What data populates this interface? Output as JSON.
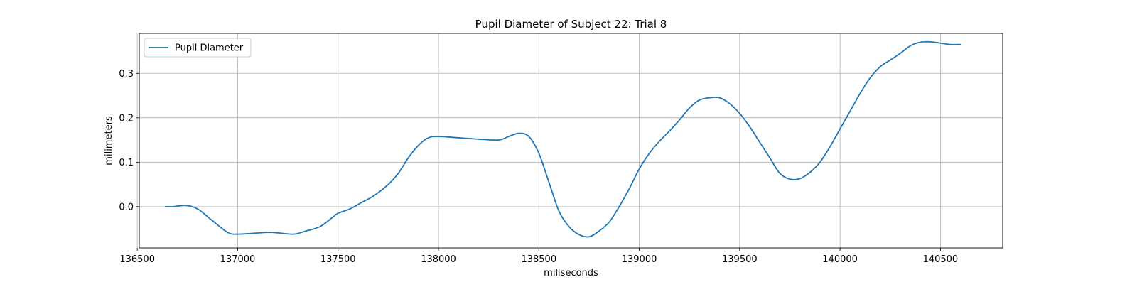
{
  "chart_data": {
    "type": "line",
    "title": "Pupil Diameter of Subject 22: Trial 8",
    "xlabel": "miliseconds",
    "ylabel": "milimeters",
    "xlim": [
      136510,
      140810
    ],
    "ylim": [
      -0.093,
      0.39
    ],
    "xticks": [
      136500,
      137000,
      137500,
      138000,
      138500,
      139000,
      139500,
      140000,
      140500
    ],
    "yticks": [
      0.0,
      0.1,
      0.2,
      0.3
    ],
    "ytick_labels": [
      "0.0",
      "0.1",
      "0.2",
      "0.3"
    ],
    "grid": true,
    "legend_position": "top-left",
    "series": [
      {
        "name": "Pupil Diameter",
        "color": "#1f77b4",
        "x": [
          136640,
          136680,
          136740,
          136800,
          136870,
          136950,
          137000,
          137080,
          137160,
          137220,
          137280,
          137340,
          137410,
          137470,
          137500,
          137560,
          137620,
          137680,
          137750,
          137800,
          137850,
          137900,
          137950,
          138000,
          138100,
          138200,
          138300,
          138350,
          138400,
          138450,
          138500,
          138550,
          138600,
          138650,
          138700,
          138750,
          138800,
          138850,
          138900,
          138950,
          139000,
          139050,
          139100,
          139150,
          139200,
          139250,
          139300,
          139350,
          139400,
          139450,
          139500,
          139550,
          139600,
          139650,
          139700,
          139750,
          139800,
          139850,
          139900,
          139950,
          140000,
          140050,
          140100,
          140150,
          140200,
          140250,
          140300,
          140350,
          140400,
          140450,
          140500,
          140550,
          140600
        ],
        "y": [
          0.0,
          0.0,
          0.003,
          -0.005,
          -0.03,
          -0.058,
          -0.062,
          -0.06,
          -0.058,
          -0.06,
          -0.062,
          -0.055,
          -0.045,
          -0.025,
          -0.015,
          -0.005,
          0.01,
          0.025,
          0.05,
          0.075,
          0.11,
          0.138,
          0.155,
          0.158,
          0.155,
          0.152,
          0.15,
          0.158,
          0.165,
          0.158,
          0.12,
          0.055,
          -0.01,
          -0.045,
          -0.063,
          -0.068,
          -0.055,
          -0.035,
          0.0,
          0.04,
          0.085,
          0.12,
          0.147,
          0.17,
          0.195,
          0.222,
          0.24,
          0.245,
          0.245,
          0.232,
          0.21,
          0.18,
          0.145,
          0.11,
          0.075,
          0.062,
          0.063,
          0.077,
          0.1,
          0.135,
          0.175,
          0.215,
          0.255,
          0.29,
          0.315,
          0.33,
          0.345,
          0.362,
          0.37,
          0.371,
          0.368,
          0.365,
          0.365
        ]
      }
    ]
  }
}
